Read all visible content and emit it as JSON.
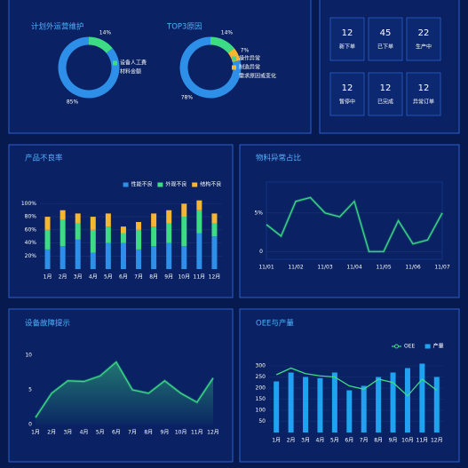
{
  "chart_data": [
    {
      "type": "pie",
      "title": "计划外运营维护",
      "categories": [
        "设备人工费",
        "材料金额"
      ],
      "values": [
        14,
        85
      ],
      "value_labels": [
        "14%",
        "85%"
      ],
      "colors": [
        "#3ddc84",
        "#2e8fe8"
      ]
    },
    {
      "type": "pie",
      "title": "TOP3原因",
      "categories": [
        "操作异常",
        "制造异常",
        "需求原因或变化"
      ],
      "values": [
        14,
        7,
        78
      ],
      "value_labels": [
        "14%",
        "7%",
        "78%"
      ],
      "colors": [
        "#3ddc84",
        "#f5b731",
        "#2e8fe8"
      ]
    },
    {
      "type": "bar",
      "title": "产品不良率",
      "stacked": true,
      "grid": true,
      "categories": [
        "1月",
        "2月",
        "3月",
        "4月",
        "5月",
        "6月",
        "7月",
        "8月",
        "9月",
        "10月",
        "11月",
        "12月"
      ],
      "series": [
        {
          "name": "性能不良",
          "color": "#2e8fe8",
          "values": [
            30,
            35,
            45,
            25,
            40,
            40,
            30,
            35,
            40,
            35,
            55,
            50
          ]
        },
        {
          "name": "外观不良",
          "color": "#3ddc84",
          "values": [
            30,
            40,
            25,
            35,
            25,
            15,
            30,
            30,
            30,
            45,
            35,
            20
          ]
        },
        {
          "name": "结构不良",
          "color": "#f5b731",
          "values": [
            20,
            15,
            15,
            20,
            20,
            10,
            12,
            20,
            20,
            20,
            15,
            15
          ]
        }
      ],
      "ylim": [
        0,
        110
      ],
      "yticks": [
        {
          "value": 20,
          "label": "20%"
        },
        {
          "value": 40,
          "label": "40%"
        },
        {
          "value": 60,
          "label": "60%"
        },
        {
          "value": 80,
          "label": "80%"
        },
        {
          "value": 100,
          "label": "100%"
        }
      ]
    },
    {
      "type": "line",
      "title": "物料异常占比",
      "grid": true,
      "color": "#3ddc84",
      "categories": [
        "11/01",
        null,
        "11/02",
        null,
        "11/03",
        null,
        "11/04",
        null,
        "11/05",
        null,
        "11/06",
        null,
        "11/07"
      ],
      "values": [
        3.5,
        2,
        6.5,
        7,
        5,
        4.5,
        6.5,
        0,
        0,
        4,
        1,
        1.5,
        5
      ],
      "ylim": [
        -1,
        9
      ],
      "yticks": [
        0,
        {
          "value": 5,
          "label": "5%"
        }
      ]
    },
    {
      "type": "line",
      "title": "设备故障提示",
      "area": true,
      "grid": false,
      "color": "#3ddc84",
      "categories": [
        "1月",
        "2月",
        "3月",
        "4月",
        "5月",
        "6月",
        "7月",
        "8月",
        "9月",
        "10月",
        "11月",
        "12月"
      ],
      "values": [
        1,
        4.5,
        6.3,
        6.2,
        7,
        9,
        5,
        4.5,
        6.3,
        4.5,
        3.2,
        6.7
      ],
      "ylim": [
        0,
        11
      ],
      "yticks": [
        0,
        5,
        10
      ]
    },
    {
      "type": "bar",
      "title": "OEE与产量",
      "grid": true,
      "categories": [
        "1月",
        "2月",
        "3月",
        "4月",
        "5月",
        "6月",
        "7月",
        "8月",
        "9月",
        "10月",
        "11月",
        "12月"
      ],
      "series": [
        {
          "name": "OEE",
          "type": "line",
          "color": "#3ddc84",
          "values": [
            260,
            290,
            265,
            255,
            250,
            210,
            195,
            240,
            225,
            165,
            240,
            190
          ]
        },
        {
          "name": "产量",
          "color": "#1fa3f0",
          "values": [
            230,
            270,
            250,
            245,
            270,
            190,
            210,
            250,
            270,
            290,
            310,
            250
          ]
        }
      ],
      "ylim": [
        0,
        340
      ],
      "yticks": [
        50,
        100,
        150,
        200,
        250,
        300
      ]
    }
  ],
  "stats": [
    {
      "value": 12,
      "label": "新下单",
      "color": "#3ddc84"
    },
    {
      "value": 45,
      "label": "已下单",
      "color": "#ffffff"
    },
    {
      "value": 22,
      "label": "生产中",
      "color": "#ffffff"
    },
    {
      "value": 12,
      "label": "暂停中",
      "color": "#ffffff"
    },
    {
      "value": 12,
      "label": "已完成",
      "color": "#ffffff"
    },
    {
      "value": 12,
      "label": "异常订单",
      "color": "#f5b731"
    }
  ]
}
